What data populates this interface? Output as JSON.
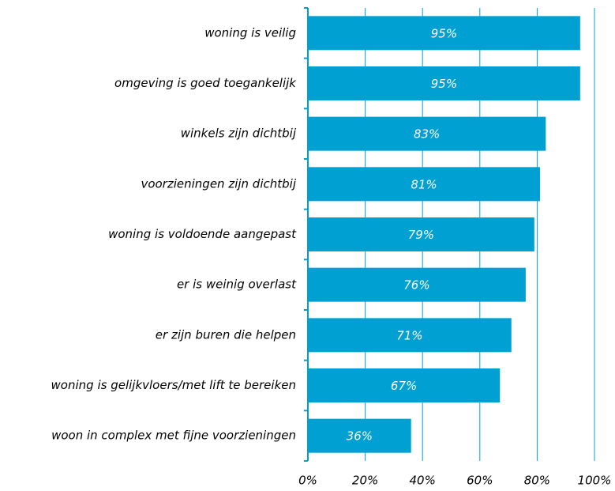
{
  "chart_data": {
    "type": "barh",
    "categories": [
      "woning is veilig",
      "omgeving is goed toegankelijk",
      "winkels zijn dichtbij",
      "voorzieningen zijn dichtbij",
      "woning is voldoende aangepast",
      "er is weinig overlast",
      "er zijn buren die helpen",
      "woning is gelijkvloers/met lift te bereiken",
      "woon in complex met fijne voorzieningen"
    ],
    "values": [
      95,
      95,
      83,
      81,
      79,
      76,
      71,
      67,
      36
    ],
    "value_labels": [
      "95%",
      "95%",
      "83%",
      "81%",
      "79%",
      "76%",
      "71%",
      "67%",
      "36%"
    ],
    "color": "#00a0d2",
    "xlim": [
      0,
      100
    ],
    "xticks": [
      {
        "value": 0,
        "label": "0%"
      },
      {
        "value": 20,
        "label": "20%"
      },
      {
        "value": 40,
        "label": "40%"
      },
      {
        "value": 60,
        "label": "60%"
      },
      {
        "value": 80,
        "label": "80%"
      },
      {
        "value": 100,
        "label": "100%"
      }
    ],
    "grid": true
  }
}
